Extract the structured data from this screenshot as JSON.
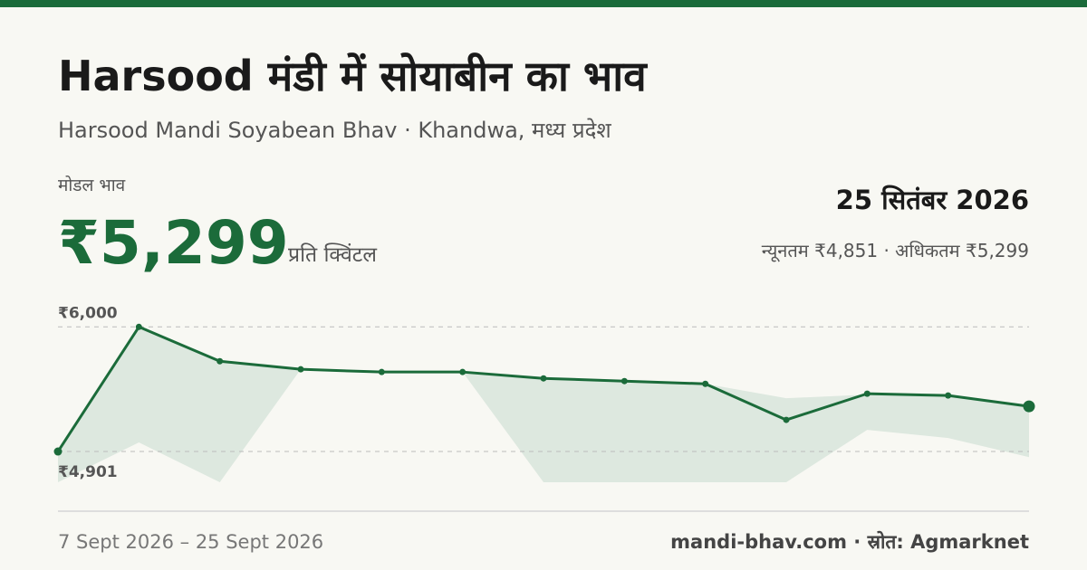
{
  "page": {
    "title": "Harsood मंडी में सोयाबीन का भाव",
    "subtitle": "Harsood Mandi Soyabean Bhav · Khandwa, मध्य प्रदेश",
    "price_label": "मोडल भाव",
    "price": "₹5,299",
    "price_unit": "प्रति क्विंटल",
    "date": "25 सितंबर 2026",
    "range_text": "न्यूनतम ₹4,851 · अधिकतम ₹5,299",
    "date_range": "7 Sept 2026 – 25 Sept 2026",
    "source": "mandi-bhav.com · स्रोत: Agmarknet"
  },
  "chart_data": {
    "type": "line",
    "color": "#1b6b3a",
    "values": [
      4901,
      6000,
      5697,
      5626,
      5602,
      5602,
      5546,
      5522,
      5498,
      5180,
      5411,
      5395,
      5299
    ],
    "band": {
      "color": "#dde8df",
      "upper": [
        4901,
        6000,
        5697,
        5626,
        5602,
        5602,
        5546,
        5522,
        5498,
        5371,
        5403,
        5395,
        5299
      ],
      "lower": [
        4630,
        4981,
        4630,
        5626,
        5602,
        5602,
        4630,
        4630,
        4630,
        4630,
        5092,
        5020,
        4851
      ]
    },
    "ylim": [
      4630,
      6170
    ],
    "yticks": [
      {
        "value": 4901,
        "label": "₹4,901"
      },
      {
        "value": 6000,
        "label": "₹6,000"
      }
    ],
    "grid": true
  }
}
